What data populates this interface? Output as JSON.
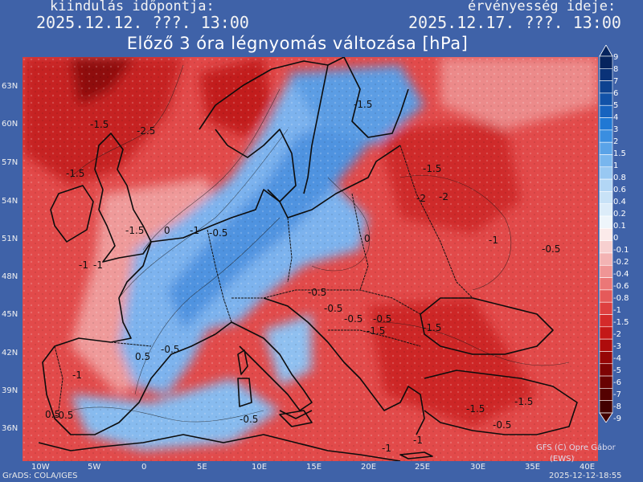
{
  "header": {
    "start_label": "kiindulás időpontja:",
    "start_date": "2025.12.12. ???. 13:00",
    "valid_label": "érvényesség ideje:",
    "valid_date": "2025.12.17. ???. 13:00",
    "title": "Előző 3 óra légnyomás változása [hPa]"
  },
  "axes": {
    "lat_labels": [
      "63N",
      "60N",
      "57N",
      "54N",
      "51N",
      "48N",
      "45N",
      "42N",
      "39N",
      "36N"
    ],
    "lon_labels": [
      "10W",
      "5W",
      "0",
      "5E",
      "10E",
      "15E",
      "20E",
      "25E",
      "30E",
      "35E",
      "40E"
    ]
  },
  "legend": {
    "levels": [
      "9",
      "8",
      "7",
      "6",
      "5",
      "4",
      "3",
      "2",
      "1.5",
      "1",
      "0.8",
      "0.6",
      "0.4",
      "0.2",
      "0.1",
      "0",
      "-0.1",
      "-0.2",
      "-0.4",
      "-0.6",
      "-0.8",
      "-1",
      "-1.5",
      "-2",
      "-3",
      "-4",
      "-5",
      "-6",
      "-7",
      "-8",
      "-9"
    ],
    "colors": [
      "#06245e",
      "#0a3278",
      "#0e4290",
      "#1252a8",
      "#1763bf",
      "#2078d4",
      "#3a8ee0",
      "#5aa3e8",
      "#78b6ee",
      "#98c8f2",
      "#b2d6f5",
      "#c8e2f7",
      "#dcecf9",
      "#eef5fb",
      "#fbeaea",
      "#f7d0d0",
      "#f3b3b3",
      "#ef9595",
      "#eb7777",
      "#e55a5a",
      "#de4040",
      "#d42a2a",
      "#c41818",
      "#ae0c0c",
      "#960606",
      "#7e0404",
      "#680202",
      "#540101",
      "#420000"
    ]
  },
  "map_labels": [
    "-1.5",
    "-2.5",
    "-1.5",
    "-1",
    "-0.5",
    "0",
    "-1.5",
    "-1",
    "-2",
    "-1.5",
    "-1.5",
    "-2",
    "-1",
    "-0.5",
    "-1",
    "-0.5",
    "-0.5",
    "-0.5",
    "-1.5",
    "-0.5",
    "-1.5",
    "0.5",
    "-0.5",
    "-1",
    "-0.5",
    "-1",
    "-1.5",
    "-1.5",
    "-0.5",
    "-1",
    "0.5",
    "-0.5",
    "0"
  ],
  "footer": {
    "left": "GrADS: COLA/IGES",
    "right": "2025-12-12-18:55",
    "credit": "GFS (C) Opre Gábor",
    "credit2": "(EWS)"
  },
  "colors": {
    "background": "#3f62a8",
    "negative": "#e24a4a",
    "positive": "#6aa6ea"
  }
}
